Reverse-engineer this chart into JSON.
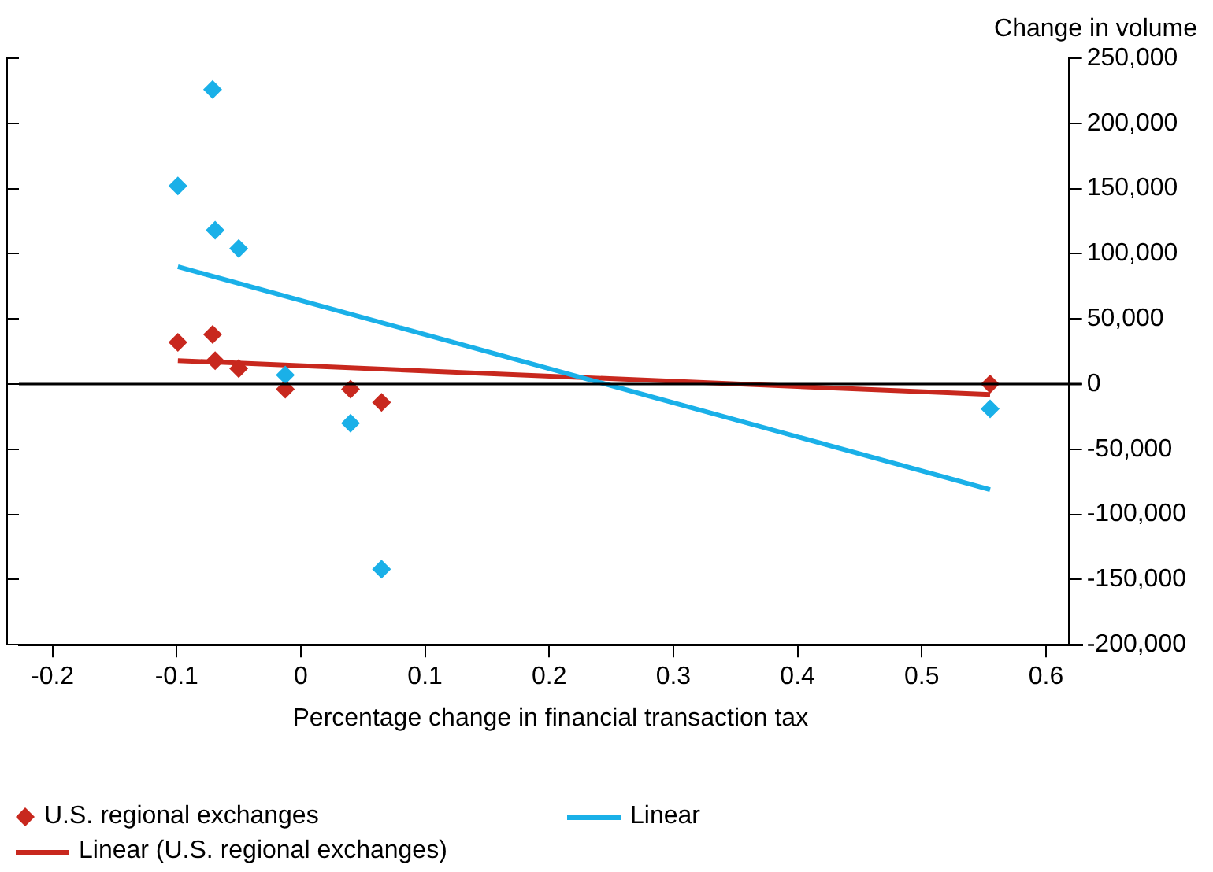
{
  "chart_data": {
    "type": "scatter",
    "xlabel": "Percentage change in financial transaction tax",
    "ylabel": "Change in volume",
    "xlim": [
      -0.227,
      0.629
    ],
    "xticks": [
      {
        "value": -0.2,
        "label": "-0.2"
      },
      {
        "value": -0.1,
        "label": "-0.1"
      },
      0,
      0.1,
      0.2,
      0.3,
      0.4,
      0.5,
      0.6
    ],
    "ylim": [
      -200000,
      250000
    ],
    "yticks": [
      {
        "value": -200000,
        "label": "-200,000"
      },
      {
        "value": -150000,
        "label": "-150,000"
      },
      {
        "value": -100000,
        "label": "-100,000"
      },
      {
        "value": -50000,
        "label": "-50,000"
      },
      0,
      {
        "value": 50000,
        "label": "50,000"
      },
      {
        "value": 100000,
        "label": "100,000"
      },
      {
        "value": 150000,
        "label": "150,000"
      },
      {
        "value": 200000,
        "label": "200,000"
      },
      {
        "value": 250000,
        "label": "250,000"
      }
    ],
    "grid": false,
    "legend": "bottom",
    "ref_lines": [
      {
        "axis": "y",
        "value": 0,
        "color": "#000000"
      }
    ],
    "series": [
      {
        "marker": "diamond",
        "color": "#1ab0e8",
        "x": [
          -0.099,
          -0.071,
          -0.069,
          -0.05,
          -0.0125,
          0.04,
          0.065,
          0.555
        ],
        "values": [
          152000,
          226000,
          118000,
          104000,
          7000,
          -30000,
          -142000,
          -19000
        ]
      },
      {
        "marker": "diamond",
        "name": "U.S. regional exchanges",
        "color": "#c8281e",
        "x": [
          -0.099,
          -0.071,
          -0.069,
          -0.05,
          -0.0125,
          0.04,
          0.065,
          0.555
        ],
        "values": [
          32000,
          38000,
          18000,
          12000,
          -4000,
          -4000,
          -14000,
          0
        ]
      },
      {
        "type": "line",
        "marker": "none",
        "name": "Linear",
        "color": "#1ab0e8",
        "x": [
          -0.099,
          0.555
        ],
        "values": [
          90000,
          -81000
        ]
      },
      {
        "type": "line",
        "marker": "none",
        "name": "Linear (U.S. regional exchanges)",
        "color": "#c8281e",
        "x": [
          -0.099,
          0.555
        ],
        "values": [
          18000,
          -8000
        ]
      }
    ]
  }
}
